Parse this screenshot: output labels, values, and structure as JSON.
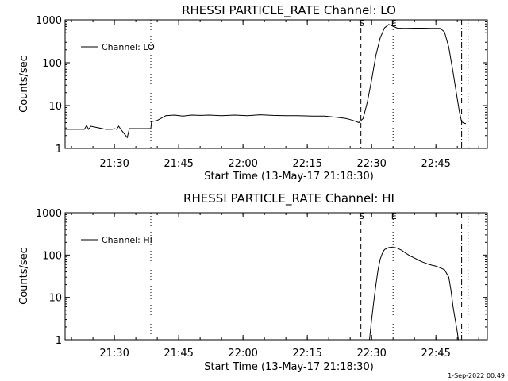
{
  "chart_data": [
    {
      "type": "line",
      "title": "RHESSI PARTICLE_RATE Channel: LO",
      "xlabel": "Start Time (13-May-17 21:18:30)",
      "ylabel": "Counts/sec",
      "yscale": "log",
      "ylim": [
        1,
        1000
      ],
      "xlim": [
        "21:18:30",
        "22:57:00"
      ],
      "x_ticks": [
        "21:30",
        "21:45",
        "22:00",
        "22:15",
        "22:30",
        "22:45"
      ],
      "y_ticks": [
        "1",
        "10",
        "100",
        "1000"
      ],
      "legend": {
        "position": "top-left",
        "entries": [
          "Channel: LO"
        ]
      },
      "markers": [
        {
          "time": "21:38:30",
          "style": "dotted",
          "label": ""
        },
        {
          "time": "22:27:30",
          "style": "dashed",
          "label": "S"
        },
        {
          "time": "22:35:00",
          "style": "dotted",
          "label": "E"
        },
        {
          "time": "22:51:00",
          "style": "dash-dot",
          "label": ""
        },
        {
          "time": "22:52:30",
          "style": "dotted",
          "label": ""
        }
      ],
      "series": [
        {
          "name": "Channel: LO",
          "x": [
            "21:18:30",
            "21:23:00",
            "21:23:30",
            "21:24:00",
            "21:24:30",
            "21:28:00",
            "21:29:30",
            "21:30:00",
            "21:30:30",
            "21:31:00",
            "21:31:30",
            "21:33:00",
            "21:33:30",
            "21:38:30",
            "21:38:40",
            "21:40:00",
            "21:42:00",
            "21:44:00",
            "21:46:00",
            "21:48:00",
            "21:50:00",
            "21:52:00",
            "21:55:00",
            "21:58:00",
            "22:01:00",
            "22:04:00",
            "22:07:00",
            "22:10:00",
            "22:13:00",
            "22:16:00",
            "22:19:00",
            "22:22:00",
            "22:24:00",
            "22:25:00",
            "22:26:00",
            "22:27:00",
            "22:28:00",
            "22:29:00",
            "22:30:00",
            "22:31:00",
            "22:32:00",
            "22:33:00",
            "22:34:00",
            "22:35:00",
            "22:36:00",
            "22:38:00",
            "22:40:00",
            "22:42:00",
            "22:44:00",
            "22:46:00",
            "22:47:00",
            "22:48:00",
            "22:49:00",
            "22:50:00",
            "22:50:30",
            "22:51:00",
            "22:51:30",
            "22:52:00"
          ],
          "y": [
            2.8,
            2.8,
            3.4,
            2.8,
            3.3,
            2.8,
            2.8,
            2.9,
            2.8,
            3.3,
            2.8,
            1.8,
            2.9,
            2.9,
            4.2,
            4.5,
            5.8,
            6.0,
            5.7,
            6.0,
            5.9,
            6.0,
            5.8,
            6.0,
            5.8,
            6.1,
            5.9,
            5.8,
            5.8,
            5.7,
            5.7,
            5.3,
            5.0,
            4.7,
            4.4,
            4.0,
            5.0,
            12,
            40,
            150,
            380,
            650,
            780,
            710,
            640,
            630,
            640,
            640,
            630,
            630,
            520,
            230,
            60,
            14,
            7,
            4.2,
            3.9,
            3.8
          ]
        }
      ]
    },
    {
      "type": "line",
      "title": "RHESSI PARTICLE_RATE Channel: HI",
      "xlabel": "Start Time (13-May-17 21:18:30)",
      "ylabel": "Counts/sec",
      "yscale": "log",
      "ylim": [
        1,
        1000
      ],
      "xlim": [
        "21:18:30",
        "22:57:00"
      ],
      "x_ticks": [
        "21:30",
        "21:45",
        "22:00",
        "22:15",
        "22:30",
        "22:45"
      ],
      "y_ticks": [
        "1",
        "10",
        "100",
        "1000"
      ],
      "legend": {
        "position": "top-left",
        "entries": [
          "Channel: HI"
        ]
      },
      "markers": [
        {
          "time": "21:38:30",
          "style": "dotted",
          "label": ""
        },
        {
          "time": "22:27:30",
          "style": "dashed",
          "label": "S"
        },
        {
          "time": "22:35:00",
          "style": "dotted",
          "label": "E"
        },
        {
          "time": "22:51:00",
          "style": "dash-dot",
          "label": ""
        },
        {
          "time": "22:52:30",
          "style": "dotted",
          "label": ""
        }
      ],
      "series": [
        {
          "name": "Channel: HI",
          "x": [
            "22:29:30",
            "22:30:00",
            "22:30:30",
            "22:31:00",
            "22:31:30",
            "22:32:00",
            "22:32:30",
            "22:33:00",
            "22:34:00",
            "22:35:00",
            "22:36:00",
            "22:37:00",
            "22:38:00",
            "22:39:00",
            "22:40:00",
            "22:41:00",
            "22:42:00",
            "22:43:00",
            "22:44:00",
            "22:45:00",
            "22:46:00",
            "22:47:00",
            "22:48:00",
            "22:48:30",
            "22:49:00",
            "22:49:30",
            "22:50:00",
            "22:50:15"
          ],
          "y": [
            1,
            3,
            8,
            20,
            45,
            80,
            110,
            135,
            150,
            155,
            145,
            130,
            110,
            95,
            85,
            75,
            68,
            62,
            58,
            55,
            50,
            45,
            30,
            15,
            6,
            3,
            1.5,
            1
          ]
        }
      ]
    }
  ],
  "footer": {
    "stamp": "1-Sep-2022 00:49"
  }
}
